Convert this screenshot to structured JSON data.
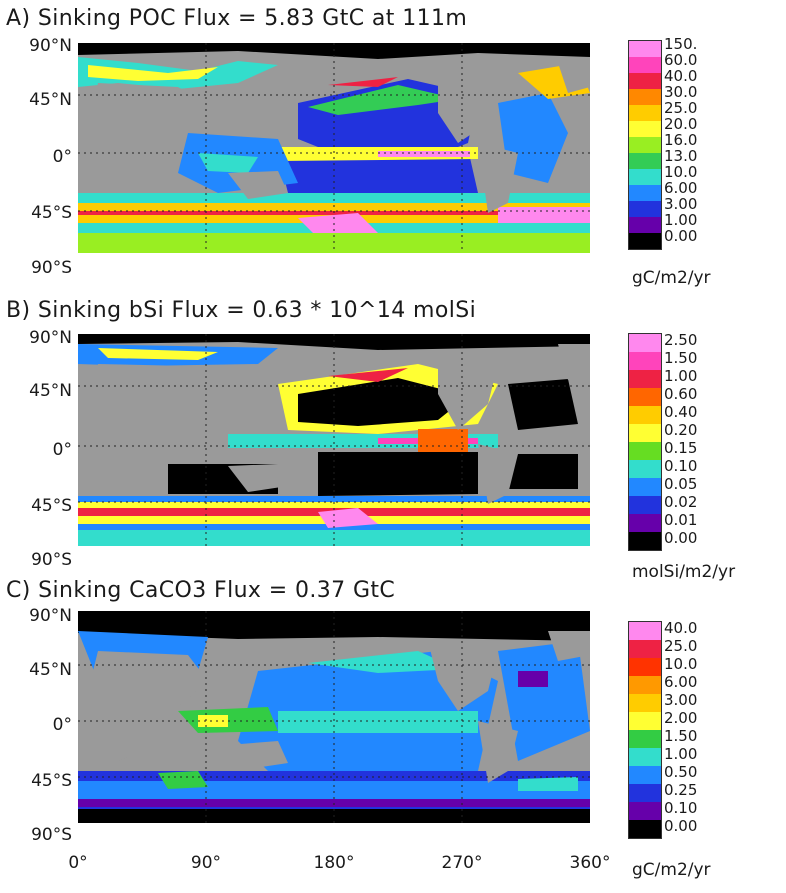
{
  "panels": [
    {
      "title": "A) Sinking POC Flux = 5.83 GtC at 111m",
      "unit": "gC/m2/yr",
      "levels": [
        "150.",
        "60.0",
        "40.0",
        "30.0",
        "25.0",
        "20.0",
        "16.0",
        "13.0",
        "10.0",
        "6.00",
        "3.00",
        "1.00",
        "0.00"
      ],
      "colors": [
        "#ff88ee",
        "#ff44bb",
        "#ee2244",
        "#ff8800",
        "#ffcc00",
        "#ffff33",
        "#99ee22",
        "#33cc55",
        "#33ddcc",
        "#2288ff",
        "#2233dd",
        "#6600aa",
        "#000000"
      ]
    },
    {
      "title": "B) Sinking bSi Flux = 0.63 * 10^14 molSi",
      "unit": "molSi/m2/yr",
      "levels": [
        "2.50",
        "1.50",
        "1.00",
        "0.60",
        "0.40",
        "0.20",
        "0.15",
        "0.10",
        "0.05",
        "0.02",
        "0.01",
        "0.00"
      ],
      "colors": [
        "#ff88ee",
        "#ff44bb",
        "#ee2244",
        "#ff6600",
        "#ffcc00",
        "#ffff33",
        "#66dd22",
        "#33ddcc",
        "#2288ff",
        "#2233dd",
        "#6600aa",
        "#000000"
      ]
    },
    {
      "title": "C) Sinking CaCO3 Flux = 0.37 GtC",
      "unit": "gC/m2/yr",
      "levels": [
        "40.0",
        "25.0",
        "10.0",
        "6.00",
        "3.00",
        "2.00",
        "1.50",
        "1.00",
        "0.50",
        "0.25",
        "0.10",
        "0.00"
      ],
      "colors": [
        "#ff88ee",
        "#ee2244",
        "#ff3300",
        "#ff9900",
        "#ffcc00",
        "#ffff33",
        "#33cc44",
        "#33ddcc",
        "#2288ff",
        "#2233dd",
        "#6600aa",
        "#000000"
      ]
    }
  ],
  "axes": {
    "lat_labels": [
      "90°N",
      "45°N",
      "0°",
      "45°S",
      "90°S"
    ],
    "lon_labels": [
      "0°",
      "90°",
      "180°",
      "270°",
      "360°"
    ]
  },
  "colors": {
    "land": "#9a9a9a",
    "ocean_black": "#000000"
  }
}
